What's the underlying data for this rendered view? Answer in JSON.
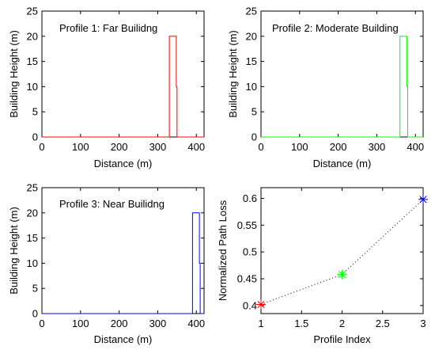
{
  "chart_data": [
    {
      "type": "line",
      "annotation": "Profile 1: Far Builidng",
      "xlabel": "Distance (m)",
      "ylabel": "Building Height (m)",
      "xlim": [
        0,
        420
      ],
      "ylim": [
        0,
        25
      ],
      "xticks": [
        "0",
        "100",
        "200",
        "300",
        "400"
      ],
      "yticks": [
        "0",
        "5",
        "10",
        "15",
        "20",
        "25"
      ],
      "color": "#ff0000",
      "x": [
        0,
        330,
        330,
        348,
        348,
        350,
        350,
        420
      ],
      "y": [
        0,
        0,
        20,
        20,
        10,
        10,
        0,
        0
      ]
    },
    {
      "type": "line",
      "annotation": "Profile 2: Moderate Building",
      "xlabel": "Distance (m)",
      "ylabel": "Building Height (m)",
      "xlim": [
        0,
        420
      ],
      "ylim": [
        0,
        25
      ],
      "xticks": [
        "0",
        "100",
        "200",
        "300",
        "400"
      ],
      "yticks": [
        "0",
        "5",
        "10",
        "15",
        "20",
        "25"
      ],
      "color": "#00ff00",
      "x": [
        0,
        360,
        360,
        378,
        378,
        380,
        380,
        420
      ],
      "y": [
        0,
        0,
        20,
        20,
        10,
        10,
        0,
        0
      ]
    },
    {
      "type": "line",
      "annotation": "Profile 3: Near Builidng",
      "xlabel": "Distance (m)",
      "ylabel": "Building Height (m)",
      "xlim": [
        0,
        420
      ],
      "ylim": [
        0,
        25
      ],
      "xticks": [
        "0",
        "100",
        "200",
        "300",
        "400"
      ],
      "yticks": [
        "0",
        "5",
        "10",
        "15",
        "20",
        "25"
      ],
      "color": "#0000ff",
      "x": [
        0,
        390,
        390,
        408,
        408,
        410,
        410,
        420
      ],
      "y": [
        0,
        0,
        20,
        20,
        10,
        10,
        0,
        0
      ]
    },
    {
      "type": "scatter",
      "xlabel": "Profile Index",
      "ylabel": "Normalized Path Loss",
      "xlim": [
        1,
        3
      ],
      "ylim": [
        0.385,
        0.62
      ],
      "xticks": [
        "1",
        "1.5",
        "2",
        "2.5",
        "3"
      ],
      "ytick_values": [
        0.4,
        0.45,
        0.5,
        0.55,
        0.6
      ],
      "yticks": [
        "0.4",
        "0.45",
        "0.5",
        "0.55",
        "0.6"
      ],
      "x": [
        1,
        2,
        3
      ],
      "y": [
        0.402,
        0.458,
        0.598
      ],
      "colors": [
        "#ff0000",
        "#00ff00",
        "#0000ff"
      ],
      "marker": "*",
      "connector": "dotted"
    }
  ]
}
